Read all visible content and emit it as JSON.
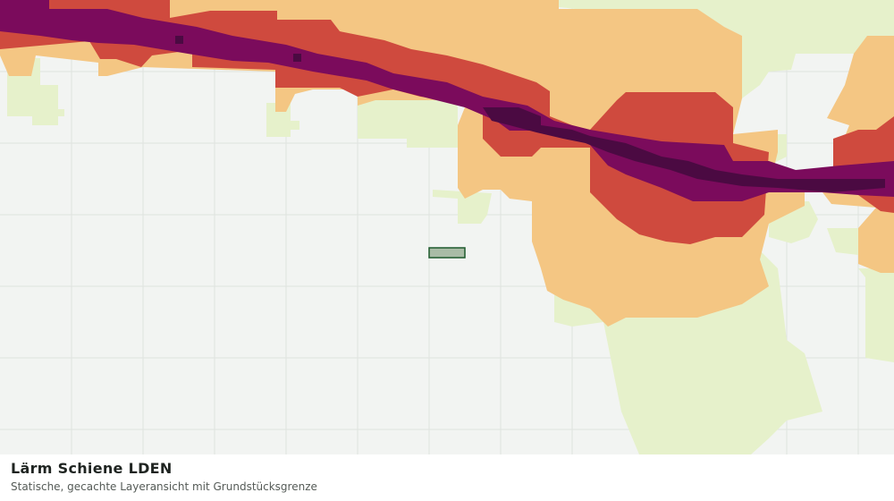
{
  "title": "Lärm Schiene LDEN",
  "subtitle": "Statische, gecachte Layeransicht mit Grundstücksgrenze"
}
